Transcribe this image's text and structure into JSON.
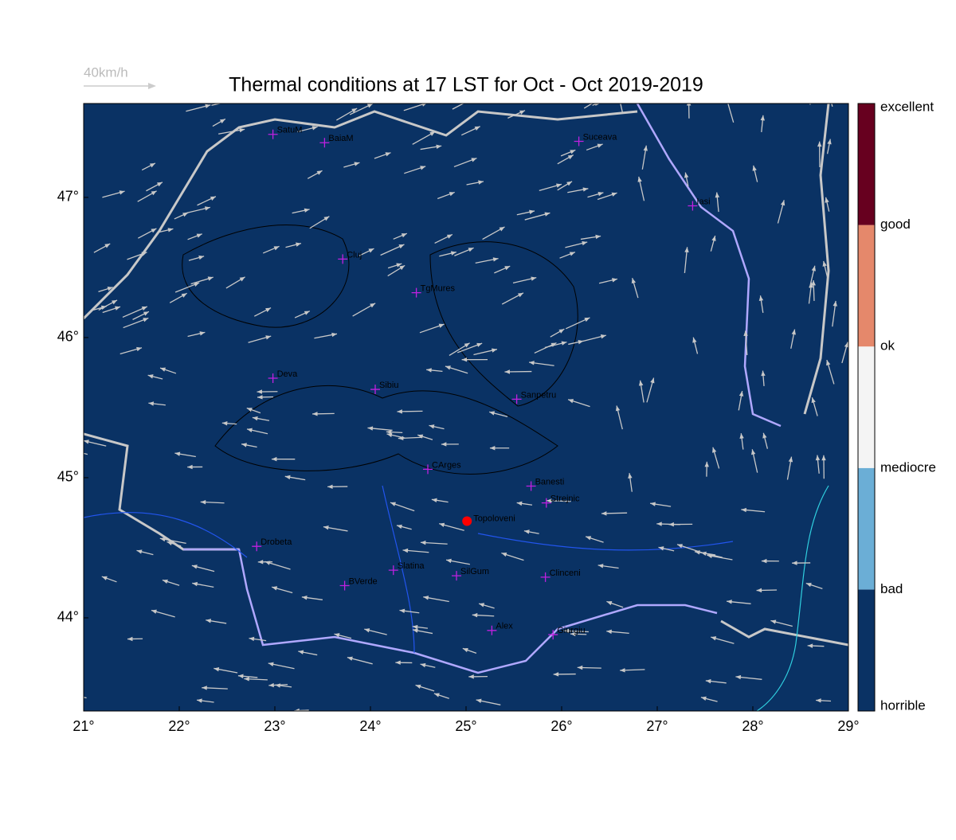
{
  "title": "Thermal conditions at 17 LST for Oct - Oct  2019-2019",
  "wind_legend": "40km/h",
  "map": {
    "xlim": [
      21,
      29
    ],
    "ylim": [
      43.335,
      47.67
    ],
    "xticks": [
      {
        "value": 21,
        "label": "21°"
      },
      {
        "value": 22,
        "label": "22°"
      },
      {
        "value": 23,
        "label": "23°"
      },
      {
        "value": 24,
        "label": "24°"
      },
      {
        "value": 25,
        "label": "25°"
      },
      {
        "value": 26,
        "label": "26°"
      },
      {
        "value": 27,
        "label": "27°"
      },
      {
        "value": 28,
        "label": "28°"
      },
      {
        "value": 29,
        "label": "29°"
      }
    ],
    "yticks": [
      {
        "value": 44,
        "label": "44°"
      },
      {
        "value": 45,
        "label": "45°"
      },
      {
        "value": 46,
        "label": "46°"
      },
      {
        "value": 47,
        "label": "47°"
      }
    ],
    "cities": [
      {
        "name": "SatuM",
        "lon": 22.98,
        "lat": 47.45
      },
      {
        "name": "BaiaM",
        "lon": 23.52,
        "lat": 47.39
      },
      {
        "name": "Suceava",
        "lon": 26.18,
        "lat": 47.4
      },
      {
        "name": "Iasi",
        "lon": 27.37,
        "lat": 46.94
      },
      {
        "name": "Cluj",
        "lon": 23.71,
        "lat": 46.56
      },
      {
        "name": "TgMures",
        "lon": 24.48,
        "lat": 46.32
      },
      {
        "name": "Deva",
        "lon": 22.98,
        "lat": 45.71
      },
      {
        "name": "Sibiu",
        "lon": 24.05,
        "lat": 45.63
      },
      {
        "name": "Sanpetru",
        "lon": 25.53,
        "lat": 45.56
      },
      {
        "name": "CArges",
        "lon": 24.6,
        "lat": 45.06
      },
      {
        "name": "Banesti",
        "lon": 25.68,
        "lat": 44.94
      },
      {
        "name": "Strejnic",
        "lon": 25.84,
        "lat": 44.82
      },
      {
        "name": "Drobeta",
        "lon": 22.81,
        "lat": 44.51
      },
      {
        "name": "Slatina",
        "lon": 24.24,
        "lat": 44.34
      },
      {
        "name": "SilGum",
        "lon": 24.9,
        "lat": 44.3
      },
      {
        "name": "BVerde",
        "lon": 23.73,
        "lat": 44.23
      },
      {
        "name": "Clinceni",
        "lon": 25.83,
        "lat": 44.29
      },
      {
        "name": "Alex",
        "lon": 25.27,
        "lat": 43.91
      },
      {
        "name": "Giurgiu",
        "lon": 25.91,
        "lat": 43.88
      }
    ],
    "highlight": {
      "name": "Topoloveni",
      "lon": 25.01,
      "lat": 44.69,
      "color": "#ff0000"
    },
    "background": "#0a3264",
    "city_color": "#c020e0"
  },
  "colorbar": {
    "labels": [
      "horrible",
      "bad",
      "mediocre",
      "ok",
      "good",
      "excellent"
    ],
    "colors": [
      "#0a3264",
      "#6baed6",
      "#f4f4f4",
      "#e5886b",
      "#67001f"
    ]
  }
}
